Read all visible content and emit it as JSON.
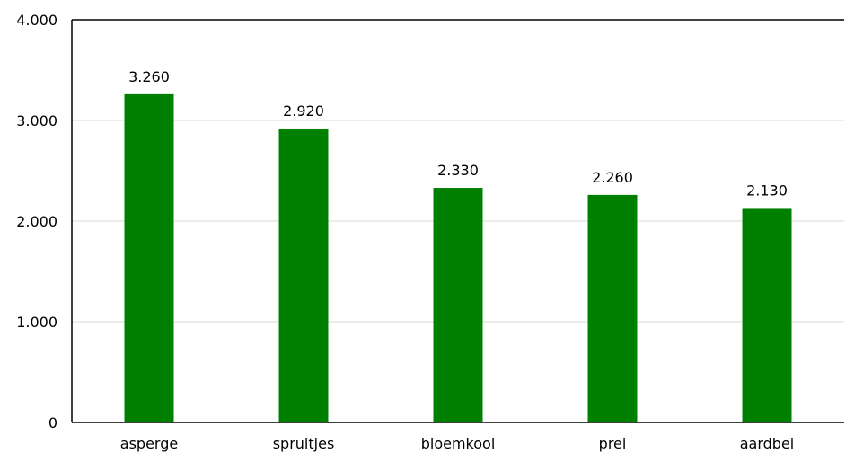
{
  "chart_data": {
    "type": "bar",
    "categories": [
      "asperge",
      "spruitjes",
      "bloemkool",
      "prei",
      "aardbei"
    ],
    "values": [
      3260,
      2920,
      2330,
      2260,
      2130
    ],
    "value_labels": [
      "3.260",
      "2.920",
      "2.330",
      "2.260",
      "2.130"
    ],
    "yticks": [
      0,
      1000,
      2000,
      3000,
      4000
    ],
    "ytick_labels": [
      "0",
      "1.000",
      "2.000",
      "3.000",
      "4.000"
    ],
    "ylim": [
      0,
      4000
    ],
    "grid": true,
    "legend": "none",
    "title": "",
    "xlabel": "",
    "ylabel": "",
    "bar_color": "#008000",
    "grid_color": "#d9d9d9",
    "axis_color": "#000000"
  }
}
